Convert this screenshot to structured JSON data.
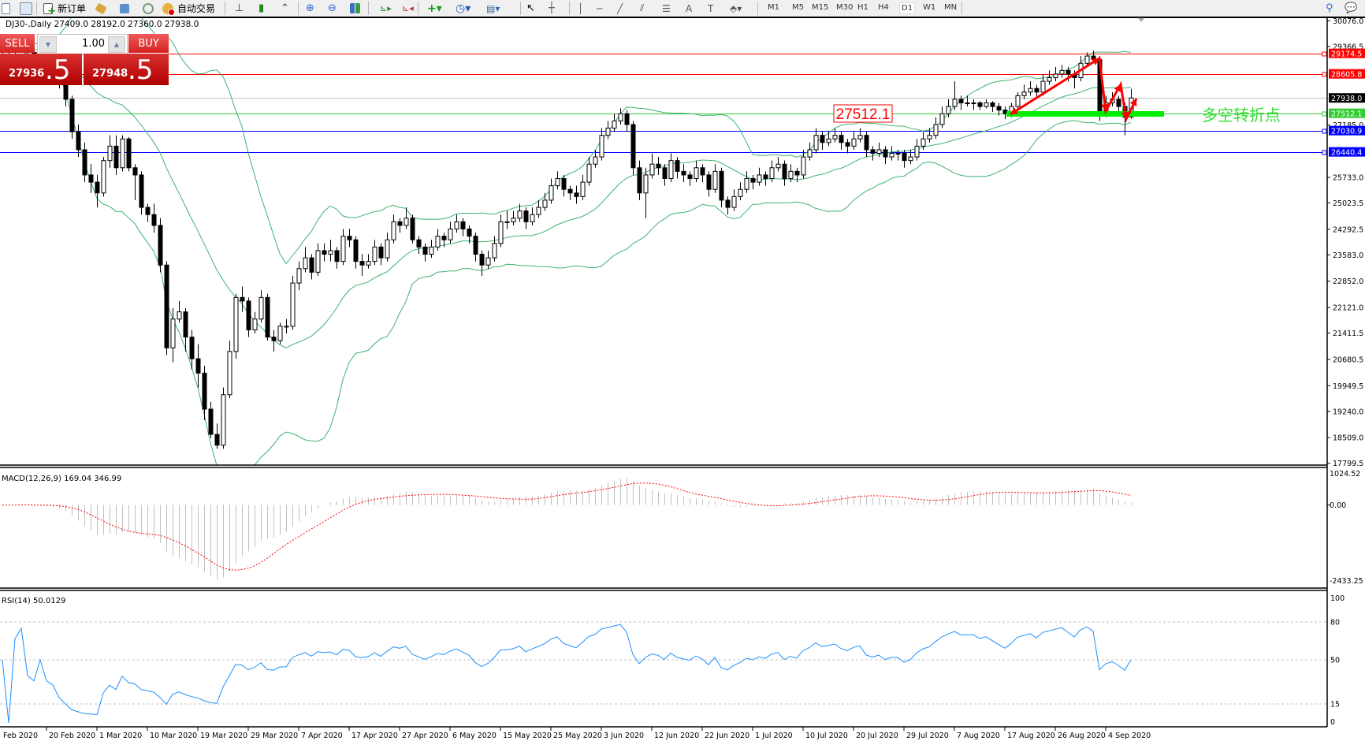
{
  "toolbar": {
    "new_order": "新订单",
    "auto_trading": "自动交易",
    "timeframes": [
      "M1",
      "M5",
      "M15",
      "M30",
      "H1",
      "H4",
      "D1",
      "W1",
      "MN"
    ],
    "active_timeframe": "D1",
    "icons": [
      "new-chart-icon",
      "profiles-icon",
      "new-order-icon",
      "metaeditor-icon",
      "navigator-icon",
      "signals-icon",
      "auto-trading-icon",
      "bar-chart-icon",
      "candlestick-icon",
      "line-chart-icon",
      "zoom-in-icon",
      "zoom-out-icon",
      "tile-windows-icon",
      "autoscroll-icon",
      "chart-shift-icon",
      "indicators-icon",
      "periods-icon",
      "templates-icon",
      "cursor-icon",
      "crosshair-icon",
      "vertical-line-icon",
      "horizontal-line-icon",
      "trendline-icon",
      "equidistant-channel-icon",
      "fibonacci-icon",
      "text-icon",
      "text-label-icon",
      "arrows-icon",
      "search-icon",
      "chat-icon"
    ]
  },
  "chart": {
    "title": "DJ30-,Daily  27409.0 28192.0 27360.0 27938.0",
    "trade_panel": {
      "sell_label": "SELL",
      "buy_label": "BUY",
      "volume": "1.00",
      "sell_price_main": "27936",
      "sell_price_big": ".5",
      "buy_price_main": "27948",
      "buy_price_big": ".5"
    },
    "annotation_price_label": "27512.1",
    "annotation_text": "多空转折点",
    "colors": {
      "up": "#ffffff",
      "down": "#000000",
      "bands": "#3cb371",
      "arrow": "#ff0000",
      "support_bar": "#00ee00",
      "annotation_text": "#33dd33"
    }
  },
  "chart_data": [
    {
      "type": "candlestick",
      "symbol": "DJ30-",
      "period": "Daily",
      "ylim": [
        17799.5,
        30076.0
      ],
      "y_ticks": [
        "30076.0",
        "29366.5",
        "27185.0",
        "25733.0",
        "25023.5",
        "24292.5",
        "23583.0",
        "22852.0",
        "22121.0",
        "21411.5",
        "20680.5",
        "19949.5",
        "19240.0",
        "18509.0",
        "17799.5"
      ],
      "x_tick_labels": [
        "Feb 2020",
        "20 Feb 2020",
        "1 Mar 2020",
        "10 Mar 2020",
        "19 Mar 2020",
        "29 Mar 2020",
        "7 Apr 2020",
        "17 Apr 2020",
        "27 Apr 2020",
        "6 May 2020",
        "15 May 2020",
        "25 May 2020",
        "3 Jun 2020",
        "12 Jun 2020",
        "22 Jun 2020",
        "1 Jul 2020",
        "10 Jul 2020",
        "20 Jul 2020",
        "29 Jul 2020",
        "7 Aug 2020",
        "17 Aug 2020",
        "26 Aug 2020",
        "4 Sep 2020"
      ],
      "price_lines": [
        {
          "price": 29174.5,
          "label": "29174.5",
          "color": "#ff0000"
        },
        {
          "price": 28605.8,
          "label": "28605.8",
          "color": "#ff0000"
        },
        {
          "price": 27938.0,
          "label": "27938.0",
          "color": "#c0c0c0",
          "label_bg": "#000000"
        },
        {
          "price": 27512.1,
          "label": "27512.1",
          "color": "#32cd32"
        },
        {
          "price": 27030.9,
          "label": "27030.9",
          "color": "#0000ff"
        },
        {
          "price": 26440.4,
          "label": "26440.4",
          "color": "#0000ff"
        }
      ],
      "indicator": "Bollinger Bands",
      "candles": [
        [
          29200,
          29450,
          29050,
          29300
        ],
        [
          29300,
          29400,
          29100,
          29250
        ],
        [
          29250,
          29500,
          29150,
          29350
        ],
        [
          29350,
          29550,
          29250,
          29400
        ],
        [
          29400,
          29500,
          29050,
          29200
        ],
        [
          29200,
          29300,
          29000,
          29150
        ],
        [
          29150,
          29450,
          29050,
          29300
        ],
        [
          29300,
          29350,
          28850,
          29000
        ],
        [
          29000,
          29100,
          28750,
          28900
        ],
        [
          28900,
          29000,
          28200,
          28400
        ],
        [
          28400,
          28500,
          27700,
          27900
        ],
        [
          27900,
          28000,
          26800,
          27000
        ],
        [
          27000,
          27200,
          26300,
          26500
        ],
        [
          26500,
          26700,
          25600,
          25800
        ],
        [
          25800,
          26100,
          25300,
          25600
        ],
        [
          25600,
          25800,
          24900,
          25300
        ],
        [
          25300,
          26300,
          25200,
          26200
        ],
        [
          26200,
          26900,
          26000,
          26600
        ],
        [
          26600,
          26900,
          25800,
          26000
        ],
        [
          26000,
          26900,
          25900,
          26800
        ],
        [
          26800,
          26850,
          25900,
          26000
        ],
        [
          26000,
          26100,
          25100,
          25800
        ],
        [
          25800,
          25900,
          24700,
          24900
        ],
        [
          24900,
          25000,
          24500,
          24700
        ],
        [
          24700,
          25000,
          24200,
          24400
        ],
        [
          24400,
          24600,
          23100,
          23300
        ],
        [
          23300,
          23400,
          20800,
          21000
        ],
        [
          21000,
          22100,
          20600,
          21800
        ],
        [
          21800,
          22300,
          21700,
          22000
        ],
        [
          22000,
          22100,
          20900,
          21300
        ],
        [
          21300,
          21500,
          20400,
          20700
        ],
        [
          20700,
          21100,
          19900,
          20300
        ],
        [
          20300,
          20500,
          19000,
          19300
        ],
        [
          19300,
          19500,
          18500,
          18600
        ],
        [
          18600,
          18900,
          18200,
          18300
        ],
        [
          18300,
          19900,
          18200,
          19700
        ],
        [
          19700,
          21200,
          19600,
          20900
        ],
        [
          20900,
          22500,
          20700,
          22400
        ],
        [
          22400,
          22700,
          22000,
          22300
        ],
        [
          22300,
          22400,
          21300,
          21500
        ],
        [
          21500,
          22000,
          21400,
          21800
        ],
        [
          21800,
          22600,
          21700,
          22400
        ],
        [
          22400,
          22500,
          21200,
          21300
        ],
        [
          21300,
          21500,
          20900,
          21200
        ],
        [
          21200,
          21700,
          21100,
          21600
        ],
        [
          21600,
          21800,
          21400,
          21600
        ],
        [
          21600,
          23000,
          21500,
          22800
        ],
        [
          22800,
          23400,
          22600,
          23200
        ],
        [
          23200,
          23800,
          23100,
          23500
        ],
        [
          23500,
          23600,
          22900,
          23100
        ],
        [
          23100,
          23900,
          23000,
          23700
        ],
        [
          23700,
          23900,
          23400,
          23600
        ],
        [
          23600,
          24000,
          23400,
          23700
        ],
        [
          23700,
          23800,
          23200,
          23400
        ],
        [
          23400,
          24300,
          23300,
          24100
        ],
        [
          24100,
          24300,
          23800,
          24000
        ],
        [
          24000,
          24100,
          23200,
          23400
        ],
        [
          23400,
          23600,
          23000,
          23300
        ],
        [
          23300,
          23600,
          23200,
          23400
        ],
        [
          23400,
          24000,
          23300,
          23800
        ],
        [
          23800,
          23900,
          23300,
          23500
        ],
        [
          23500,
          24200,
          23400,
          24000
        ],
        [
          24000,
          24700,
          23900,
          24500
        ],
        [
          24500,
          24600,
          24200,
          24400
        ],
        [
          24400,
          24900,
          24300,
          24600
        ],
        [
          24600,
          24700,
          23900,
          24000
        ],
        [
          24000,
          24100,
          23600,
          23800
        ],
        [
          23800,
          23900,
          23400,
          23600
        ],
        [
          23600,
          24000,
          23500,
          23800
        ],
        [
          23800,
          24300,
          23700,
          24100
        ],
        [
          24100,
          24200,
          23800,
          24000
        ],
        [
          24000,
          24500,
          23900,
          24300
        ],
        [
          24300,
          24700,
          24200,
          24500
        ],
        [
          24500,
          24600,
          24100,
          24300
        ],
        [
          24300,
          24400,
          23900,
          24100
        ],
        [
          24100,
          24200,
          23400,
          23600
        ],
        [
          23600,
          23700,
          23000,
          23300
        ],
        [
          23300,
          23700,
          23200,
          23500
        ],
        [
          23500,
          24100,
          23400,
          23900
        ],
        [
          23900,
          24700,
          23800,
          24500
        ],
        [
          24500,
          24800,
          24300,
          24500
        ],
        [
          24500,
          24800,
          24400,
          24600
        ],
        [
          24600,
          25000,
          24500,
          24800
        ],
        [
          24800,
          24900,
          24300,
          24500
        ],
        [
          24500,
          24900,
          24400,
          24700
        ],
        [
          24700,
          25100,
          24600,
          24900
        ],
        [
          24900,
          25300,
          24800,
          25100
        ],
        [
          25100,
          25700,
          25000,
          25500
        ],
        [
          25500,
          25900,
          25400,
          25700
        ],
        [
          25700,
          25800,
          25200,
          25400
        ],
        [
          25400,
          25500,
          25100,
          25300
        ],
        [
          25300,
          25500,
          25000,
          25200
        ],
        [
          25200,
          25800,
          25100,
          25600
        ],
        [
          25600,
          26300,
          25500,
          26100
        ],
        [
          26100,
          26500,
          26000,
          26300
        ],
        [
          26300,
          27100,
          26200,
          26900
        ],
        [
          26900,
          27300,
          26800,
          27100
        ],
        [
          27100,
          27500,
          27000,
          27300
        ],
        [
          27300,
          27650,
          27200,
          27500
        ],
        [
          27500,
          27600,
          27000,
          27200
        ],
        [
          27200,
          27300,
          25800,
          26000
        ],
        [
          26000,
          26200,
          25100,
          25300
        ],
        [
          25300,
          26000,
          24600,
          25800
        ],
        [
          25800,
          26400,
          25700,
          26100
        ],
        [
          26100,
          26300,
          25800,
          26000
        ],
        [
          26000,
          26100,
          25500,
          25700
        ],
        [
          25700,
          26400,
          25600,
          26200
        ],
        [
          26200,
          26300,
          25700,
          25900
        ],
        [
          25900,
          26100,
          25600,
          25800
        ],
        [
          25800,
          25900,
          25500,
          25700
        ],
        [
          25700,
          26200,
          25600,
          26000
        ],
        [
          26000,
          26100,
          25600,
          25800
        ],
        [
          25800,
          25900,
          25200,
          25400
        ],
        [
          25400,
          26100,
          25300,
          25900
        ],
        [
          25900,
          26000,
          24900,
          25100
        ],
        [
          25100,
          25200,
          24700,
          24900
        ],
        [
          24900,
          25400,
          24800,
          25200
        ],
        [
          25200,
          25600,
          25100,
          25400
        ],
        [
          25400,
          25900,
          25300,
          25700
        ],
        [
          25700,
          25800,
          25400,
          25600
        ],
        [
          25600,
          26000,
          25500,
          25800
        ],
        [
          25800,
          25900,
          25500,
          25700
        ],
        [
          25700,
          26200,
          25600,
          26000
        ],
        [
          26000,
          26300,
          25900,
          26100
        ],
        [
          26100,
          26200,
          25500,
          25700
        ],
        [
          25700,
          26100,
          25600,
          25900
        ],
        [
          25900,
          26000,
          25600,
          25800
        ],
        [
          25800,
          26500,
          25700,
          26300
        ],
        [
          26300,
          26700,
          26200,
          26500
        ],
        [
          26500,
          27100,
          26400,
          26900
        ],
        [
          26900,
          27000,
          26500,
          26700
        ],
        [
          26700,
          27000,
          26600,
          26800
        ],
        [
          26800,
          27100,
          26700,
          26900
        ],
        [
          26900,
          27000,
          26500,
          26700
        ],
        [
          26700,
          26800,
          26400,
          26600
        ],
        [
          26600,
          27000,
          26500,
          26800
        ],
        [
          26800,
          27100,
          26700,
          26900
        ],
        [
          26900,
          27000,
          26300,
          26500
        ],
        [
          26500,
          26600,
          26200,
          26400
        ],
        [
          26400,
          26700,
          26300,
          26500
        ],
        [
          26500,
          26600,
          26100,
          26300
        ],
        [
          26300,
          26600,
          26200,
          26400
        ],
        [
          26400,
          26500,
          26200,
          26400
        ],
        [
          26400,
          26500,
          26000,
          26200
        ],
        [
          26200,
          26500,
          26100,
          26300
        ],
        [
          26300,
          26800,
          26200,
          26600
        ],
        [
          26600,
          27000,
          26500,
          26800
        ],
        [
          26800,
          27100,
          26700,
          26900
        ],
        [
          26900,
          27400,
          26800,
          27200
        ],
        [
          27200,
          27700,
          27100,
          27500
        ],
        [
          27500,
          27900,
          27400,
          27700
        ],
        [
          27700,
          28400,
          27600,
          27900
        ],
        [
          27900,
          28000,
          27600,
          27800
        ],
        [
          27800,
          28000,
          27700,
          27800
        ],
        [
          27800,
          27900,
          27600,
          27800
        ],
        [
          27800,
          27850,
          27600,
          27700
        ],
        [
          27700,
          27900,
          27650,
          27800
        ],
        [
          27800,
          27850,
          27550,
          27700
        ],
        [
          27700,
          27800,
          27450,
          27600
        ],
        [
          27600,
          27700,
          27350,
          27500
        ],
        [
          27500,
          27800,
          27400,
          27700
        ],
        [
          27700,
          28100,
          27600,
          28000
        ],
        [
          28000,
          28300,
          27900,
          28100
        ],
        [
          28100,
          28400,
          28000,
          28200
        ],
        [
          28200,
          28300,
          27950,
          28100
        ],
        [
          28100,
          28600,
          28000,
          28400
        ],
        [
          28400,
          28700,
          28300,
          28500
        ],
        [
          28500,
          28800,
          28400,
          28600
        ],
        [
          28600,
          28850,
          28500,
          28700
        ],
        [
          28700,
          28800,
          28400,
          28600
        ],
        [
          28600,
          28700,
          28200,
          28500
        ],
        [
          28500,
          29100,
          28400,
          28900
        ],
        [
          28900,
          29200,
          28800,
          29100
        ],
        [
          29100,
          29250,
          28900,
          29000
        ],
        [
          29000,
          29100,
          27300,
          27500
        ],
        [
          27500,
          28000,
          27400,
          27800
        ],
        [
          27800,
          28100,
          27700,
          27900
        ],
        [
          27900,
          28000,
          27500,
          27700
        ],
        [
          27700,
          27800,
          26900,
          27400
        ],
        [
          27409,
          28192,
          27360,
          27938
        ]
      ]
    },
    {
      "type": "bar+line",
      "title": "MACD(12,26,9) 169.04 346.99",
      "y_ticks": [
        "1024.52",
        "0.00",
        "-2433.25"
      ],
      "ylim": [
        -2433.25,
        1024.52
      ]
    },
    {
      "type": "line",
      "title": "RSI(14) 50.0129",
      "y_ticks": [
        "100",
        "80",
        "50",
        "15",
        "0"
      ],
      "levels": [
        80,
        50,
        15
      ],
      "ylim": [
        0,
        100
      ]
    }
  ]
}
